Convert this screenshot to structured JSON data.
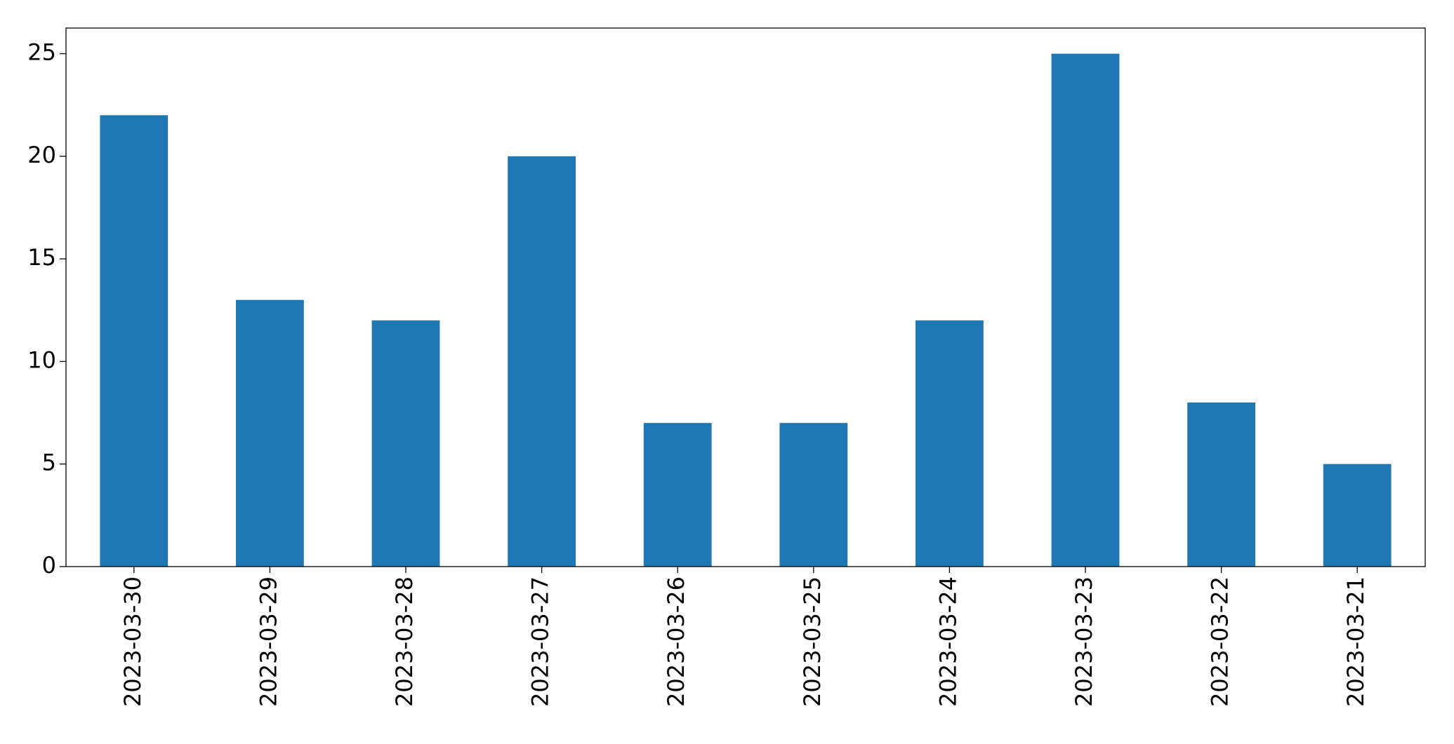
{
  "chart_data": {
    "type": "bar",
    "categories": [
      "2023-03-30",
      "2023-03-29",
      "2023-03-28",
      "2023-03-27",
      "2023-03-26",
      "2023-03-25",
      "2023-03-24",
      "2023-03-23",
      "2023-03-22",
      "2023-03-21"
    ],
    "values": [
      22,
      13,
      12,
      20,
      7,
      7,
      12,
      25,
      8,
      5
    ],
    "color": "#1f77b4",
    "ylim": [
      0,
      26.25
    ],
    "yticks": [
      0,
      5,
      10,
      15,
      20,
      25
    ],
    "grid": false
  }
}
